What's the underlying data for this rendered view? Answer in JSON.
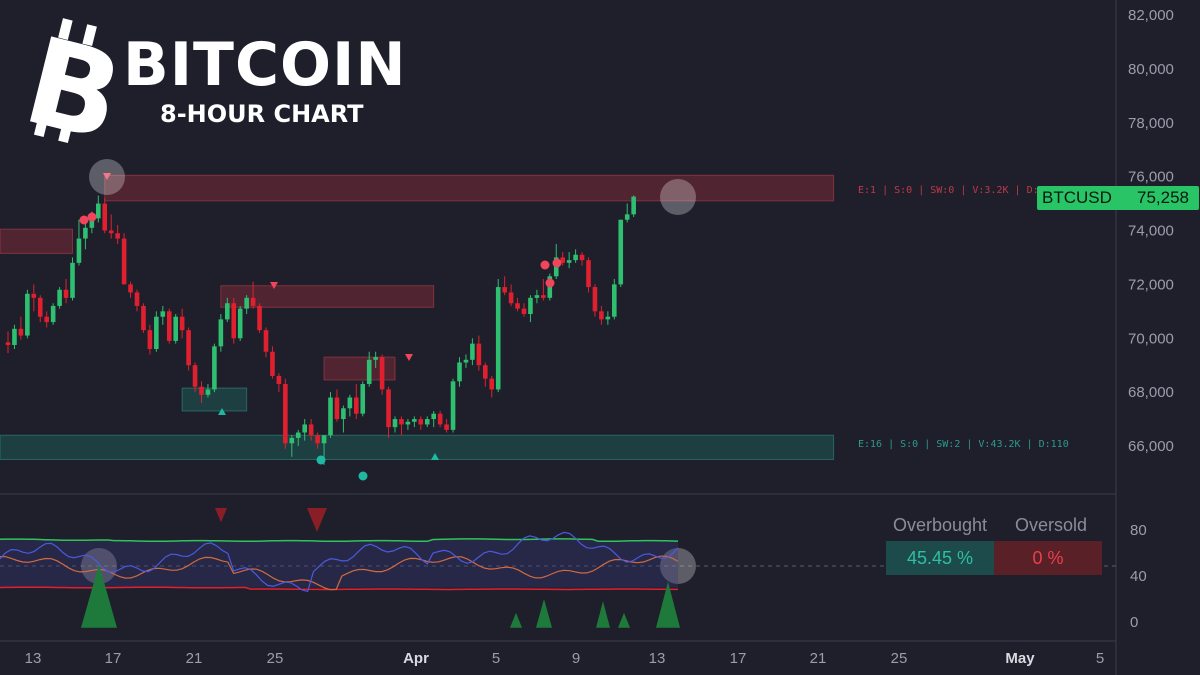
{
  "branding": {
    "title": "BITCOIN",
    "subtitle": "8-HOUR CHART",
    "logo_icon": "bitcoin-icon"
  },
  "price_tag": {
    "symbol": "BTCUSD",
    "value": "75,258",
    "color": "#28c466"
  },
  "zone_labels": {
    "upper": "E:1 | S:0 | SW:0 | V:3.2K | D:85",
    "lower": "E:16 | S:0 | SW:2 | V:43.2K | D:110"
  },
  "oscillator": {
    "overbought_label": "Overbought",
    "oversold_label": "Oversold",
    "overbought_value": "45.45 %",
    "oversold_value": "0 %"
  },
  "colors": {
    "background": "#1e1f2b",
    "up": "#2fbf71",
    "down": "#e0202e",
    "resistance": "#7a2a36",
    "support": "#1f5a55"
  },
  "chart_data": {
    "type": "candlestick",
    "y_axis_ticks": [
      "82,000",
      "80,000",
      "78,000",
      "76,000",
      "74,000",
      "72,000",
      "70,000",
      "68,000",
      "66,000"
    ],
    "y_range": [
      64600,
      82600
    ],
    "x_axis_ticks": [
      "13",
      "17",
      "21",
      "25",
      "Apr",
      "5",
      "9",
      "13",
      "17",
      "21",
      "25",
      "May",
      "5"
    ],
    "osc_axis_ticks": [
      "80",
      "40",
      "0"
    ],
    "osc_range": [
      -5,
      105
    ],
    "candles": [
      [
        69850,
        70250,
        69450,
        69750
      ],
      [
        69750,
        70500,
        69600,
        70350
      ],
      [
        70350,
        70800,
        69950,
        70100
      ],
      [
        70100,
        71800,
        70000,
        71650
      ],
      [
        71650,
        72000,
        71000,
        71500
      ],
      [
        71500,
        71600,
        70600,
        70800
      ],
      [
        70800,
        71000,
        70400,
        70600
      ],
      [
        70600,
        71300,
        70500,
        71200
      ],
      [
        71200,
        71900,
        71100,
        71800
      ],
      [
        71800,
        72200,
        71300,
        71500
      ],
      [
        71500,
        73000,
        71400,
        72800
      ],
      [
        72800,
        74400,
        72700,
        73700
      ],
      [
        73700,
        74300,
        73300,
        74100
      ],
      [
        74100,
        74700,
        73900,
        74450
      ],
      [
        74450,
        75300,
        74300,
        75000
      ],
      [
        75000,
        75200,
        73900,
        74000
      ],
      [
        74000,
        74600,
        73700,
        73900
      ],
      [
        73900,
        74200,
        73500,
        73700
      ],
      [
        73700,
        73900,
        72000,
        72000
      ],
      [
        72000,
        72100,
        71500,
        71700
      ],
      [
        71700,
        71800,
        71000,
        71200
      ],
      [
        71200,
        71300,
        70200,
        70300
      ],
      [
        70300,
        70500,
        69400,
        69600
      ],
      [
        69600,
        71000,
        69500,
        70800
      ],
      [
        70800,
        71200,
        70500,
        71000
      ],
      [
        71000,
        71100,
        69800,
        69900
      ],
      [
        69900,
        70900,
        69800,
        70800
      ],
      [
        70800,
        71100,
        70000,
        70300
      ],
      [
        70300,
        70400,
        68800,
        69000
      ],
      [
        69000,
        69100,
        68000,
        68200
      ],
      [
        68200,
        68400,
        67600,
        67900
      ],
      [
        67900,
        68300,
        67800,
        68100
      ],
      [
        68100,
        69800,
        68000,
        69700
      ],
      [
        69700,
        70900,
        69500,
        70700
      ],
      [
        70700,
        71500,
        70600,
        71300
      ],
      [
        71300,
        71500,
        69800,
        70000
      ],
      [
        70000,
        71200,
        69900,
        71100
      ],
      [
        71100,
        71600,
        70900,
        71500
      ],
      [
        71500,
        72100,
        71100,
        71200
      ],
      [
        71200,
        71300,
        70200,
        70300
      ],
      [
        70300,
        70400,
        69300,
        69500
      ],
      [
        69500,
        69700,
        68500,
        68600
      ],
      [
        68600,
        68700,
        68000,
        68300
      ],
      [
        68300,
        68500,
        65900,
        66100
      ],
      [
        66100,
        66400,
        65600,
        66300
      ],
      [
        66300,
        66600,
        66000,
        66500
      ],
      [
        66500,
        67000,
        66200,
        66800
      ],
      [
        66800,
        67000,
        66200,
        66400
      ],
      [
        66400,
        66500,
        65900,
        66100
      ],
      [
        66100,
        66300,
        65300,
        66400
      ],
      [
        66400,
        68000,
        66300,
        67800
      ],
      [
        67800,
        68100,
        66900,
        67000
      ],
      [
        67000,
        67500,
        66500,
        67400
      ],
      [
        67400,
        67900,
        67100,
        67800
      ],
      [
        67800,
        68300,
        67000,
        67200
      ],
      [
        67200,
        68400,
        67100,
        68300
      ],
      [
        68300,
        69500,
        68200,
        69200
      ],
      [
        69200,
        69500,
        68900,
        69300
      ],
      [
        69300,
        69400,
        67900,
        68100
      ],
      [
        68100,
        68200,
        66300,
        66700
      ],
      [
        66700,
        67100,
        66500,
        67000
      ],
      [
        67000,
        67100,
        66400,
        66800
      ],
      [
        66800,
        67000,
        66600,
        66900
      ],
      [
        66900,
        67100,
        66700,
        67000
      ],
      [
        67000,
        67100,
        66600,
        66800
      ],
      [
        66800,
        67100,
        66700,
        67000
      ],
      [
        67000,
        67300,
        66700,
        67200
      ],
      [
        67200,
        67300,
        66700,
        66800
      ],
      [
        66800,
        67000,
        66500,
        66600
      ],
      [
        66600,
        68500,
        66500,
        68400
      ],
      [
        68400,
        69300,
        68200,
        69100
      ],
      [
        69100,
        69400,
        68900,
        69200
      ],
      [
        69200,
        70000,
        69000,
        69800
      ],
      [
        69800,
        70100,
        68800,
        69000
      ],
      [
        69000,
        69100,
        68200,
        68500
      ],
      [
        68500,
        68600,
        67800,
        68100
      ],
      [
        68100,
        72200,
        68000,
        71900
      ],
      [
        71900,
        72300,
        71600,
        71700
      ],
      [
        71700,
        72000,
        71200,
        71300
      ],
      [
        71300,
        71500,
        71000,
        71100
      ],
      [
        71100,
        71300,
        70800,
        70900
      ],
      [
        70900,
        71600,
        70600,
        71500
      ],
      [
        71500,
        71800,
        71300,
        71600
      ],
      [
        71600,
        72200,
        71400,
        71500
      ],
      [
        71500,
        72400,
        71400,
        72300
      ],
      [
        72300,
        73500,
        72200,
        73000
      ],
      [
        73000,
        73200,
        72700,
        72800
      ],
      [
        72800,
        73200,
        72600,
        72900
      ],
      [
        72900,
        73300,
        72800,
        73100
      ],
      [
        73100,
        73200,
        72700,
        72900
      ],
      [
        72900,
        73000,
        71700,
        71900
      ],
      [
        71900,
        72000,
        70800,
        71000
      ],
      [
        71000,
        71200,
        70500,
        70700
      ],
      [
        70700,
        71000,
        70500,
        70800
      ],
      [
        70800,
        72200,
        70700,
        72000
      ],
      [
        72000,
        74400,
        71900,
        74400
      ],
      [
        74400,
        75000,
        74300,
        74600
      ],
      [
        74600,
        75300,
        74500,
        75258
      ]
    ],
    "annotations": {
      "resistance_zones": [
        {
          "from_candle": 15,
          "to_candle": 128,
          "top": 76050,
          "bottom": 75100
        },
        {
          "from_candle": 0,
          "to_candle": 10,
          "top": 74050,
          "bottom": 73150
        },
        {
          "from_candle": 33,
          "to_candle": 66,
          "top": 71950,
          "bottom": 71150
        },
        {
          "from_candle": 49,
          "to_candle": 60,
          "top": 69300,
          "bottom": 68450
        }
      ],
      "support_zones": [
        {
          "from_candle": 27,
          "to_candle": 37,
          "top": 68150,
          "bottom": 67300
        },
        {
          "from_candle": 0,
          "to_candle": 128,
          "top": 66400,
          "bottom": 65500
        }
      ]
    },
    "oscillator_series": [
      {
        "name": "upper",
        "color": "#2ec45a"
      },
      {
        "name": "lower",
        "color": "#e0202e"
      },
      {
        "name": "fast",
        "color": "#4a5ae0"
      },
      {
        "name": "slow",
        "color": "#d06a40"
      }
    ]
  }
}
